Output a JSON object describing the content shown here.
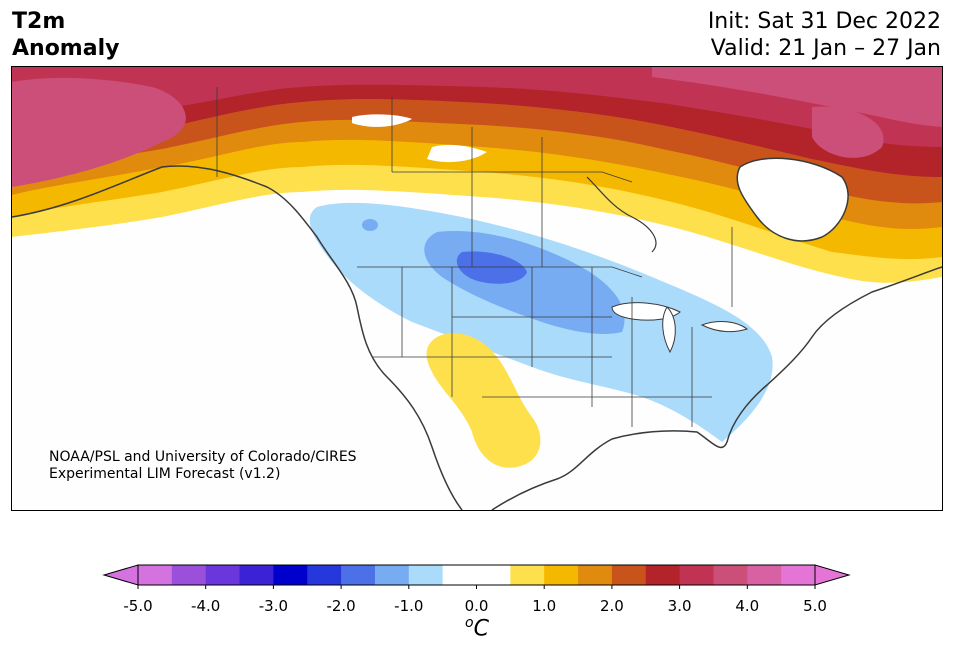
{
  "title": {
    "left_line1": "T2m",
    "left_line2": "Anomaly",
    "right_line1": "Init: Sat 31 Dec 2022",
    "right_line2": "Valid: 21 Jan – 27 Jan"
  },
  "credit": {
    "line1": "NOAA/PSL and University of Colorado/CIRES",
    "line2": "Experimental LIM Forecast (v1.2)"
  },
  "colorbar": {
    "unit_base": "C",
    "unit_sup": "o",
    "ticks": [
      "-5.0",
      "-4.0",
      "-3.0",
      "-2.0",
      "-1.0",
      "0.0",
      "1.0",
      "2.0",
      "3.0",
      "4.0",
      "5.0"
    ],
    "colors": [
      "#d472e0",
      "#9b50dc",
      "#6a37dc",
      "#3b22d4",
      "#0000cd",
      "#2637db",
      "#4b70e8",
      "#77acf2",
      "#aadbfb",
      "#ffffff",
      "#ffffff",
      "#fde04c",
      "#f5b800",
      "#e08a0e",
      "#c9541b",
      "#b2232a",
      "#c13352",
      "#cc4f7a",
      "#d861a3",
      "#e474d6"
    ]
  }
}
